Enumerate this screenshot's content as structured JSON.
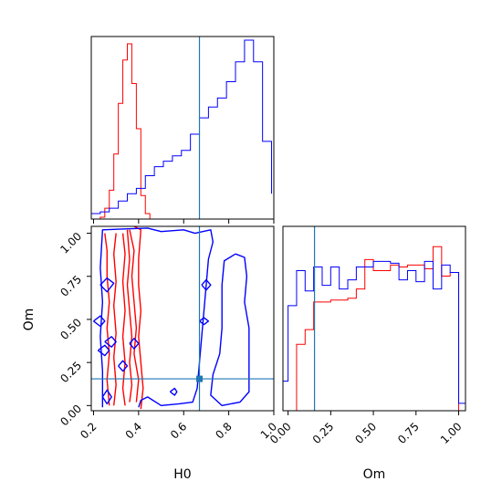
{
  "chart_data": {
    "type": "corner",
    "parameters": [
      "H0",
      "Om"
    ],
    "colors": {
      "red": "#ff0000",
      "blue": "#0000ff",
      "truth": "#1f77b4"
    },
    "truths": {
      "H0": 0.67,
      "Om": 0.155
    },
    "panels": [
      {
        "kind": "histogram",
        "param": "H0",
        "xlim": [
          0.19,
          1.0
        ],
        "series": [
          {
            "color": "red",
            "edges": [
              0.23,
              0.25,
              0.27,
              0.29,
              0.31,
              0.33,
              0.35,
              0.37,
              0.39,
              0.41,
              0.43,
              0.45
            ],
            "counts": [
              0.01,
              0.06,
              0.16,
              0.36,
              0.64,
              0.88,
              0.97,
              0.75,
              0.5,
              0.13,
              0.03
            ]
          },
          {
            "color": "blue",
            "edges": [
              0.19,
              0.23,
              0.27,
              0.31,
              0.35,
              0.39,
              0.43,
              0.47,
              0.51,
              0.55,
              0.59,
              0.63,
              0.67,
              0.71,
              0.75,
              0.79,
              0.83,
              0.87,
              0.91,
              0.95,
              0.99
            ],
            "counts": [
              0.03,
              0.04,
              0.06,
              0.1,
              0.14,
              0.17,
              0.24,
              0.29,
              0.32,
              0.35,
              0.38,
              0.47,
              0.56,
              0.62,
              0.67,
              0.76,
              0.87,
              0.99,
              0.87,
              0.43,
              0.14
            ]
          }
        ]
      },
      {
        "kind": "contour",
        "xparam": "H0",
        "yparam": "Om",
        "xlim": [
          0.19,
          1.0
        ],
        "ylim": [
          -0.03,
          1.04
        ],
        "xticks": [
          "0.2",
          "0.4",
          "0.6",
          "0.8",
          "1.0"
        ],
        "yticks": [
          "0.00",
          "0.25",
          "0.50",
          "0.75",
          "1.00"
        ],
        "series": [
          {
            "color": "red",
            "contours": [
              [
                [
                  0.25,
                  1.0
                ],
                [
                  0.26,
                  0.9
                ],
                [
                  0.26,
                  0.75
                ],
                [
                  0.27,
                  0.6
                ],
                [
                  0.26,
                  0.45
                ],
                [
                  0.27,
                  0.3
                ],
                [
                  0.26,
                  0.15
                ],
                [
                  0.27,
                  0.0
                ]
              ],
              [
                [
                  0.3,
                  1.0
                ],
                [
                  0.29,
                  0.88
                ],
                [
                  0.3,
                  0.72
                ],
                [
                  0.29,
                  0.58
                ],
                [
                  0.3,
                  0.42
                ],
                [
                  0.29,
                  0.28
                ],
                [
                  0.3,
                  0.12
                ],
                [
                  0.29,
                  0.0
                ]
              ],
              [
                [
                  0.33,
                  1.0
                ],
                [
                  0.34,
                  0.88
                ],
                [
                  0.33,
                  0.72
                ],
                [
                  0.34,
                  0.55
                ],
                [
                  0.33,
                  0.4
                ],
                [
                  0.34,
                  0.25
                ],
                [
                  0.33,
                  0.1
                ],
                [
                  0.34,
                  0.0
                ]
              ],
              [
                [
                  0.35,
                  1.02
                ],
                [
                  0.36,
                  0.85
                ],
                [
                  0.35,
                  0.7
                ],
                [
                  0.36,
                  0.55
                ],
                [
                  0.37,
                  0.4
                ],
                [
                  0.36,
                  0.25
                ],
                [
                  0.37,
                  0.12
                ],
                [
                  0.36,
                  0.02
                ]
              ],
              [
                [
                  0.36,
                  1.02
                ],
                [
                  0.38,
                  0.9
                ],
                [
                  0.37,
                  0.75
                ],
                [
                  0.38,
                  0.6
                ],
                [
                  0.39,
                  0.45
                ],
                [
                  0.38,
                  0.3
                ],
                [
                  0.4,
                  0.15
                ],
                [
                  0.39,
                  0.02
                ]
              ],
              [
                [
                  0.38,
                  1.04
                ],
                [
                  0.41,
                  1.02
                ],
                [
                  0.4,
                  0.85
                ],
                [
                  0.4,
                  0.7
                ],
                [
                  0.41,
                  0.55
                ],
                [
                  0.4,
                  0.4
                ],
                [
                  0.41,
                  0.25
                ],
                [
                  0.42,
                  0.1
                ],
                [
                  0.41,
                  -0.02
                ]
              ]
            ]
          },
          {
            "color": "blue",
            "contours": [
              [
                [
                  0.24,
                  -0.01
                ],
                [
                  0.24,
                  0.2
                ],
                [
                  0.23,
                  0.4
                ],
                [
                  0.24,
                  0.6
                ],
                [
                  0.23,
                  0.8
                ],
                [
                  0.24,
                  1.02
                ],
                [
                  0.44,
                  1.03
                ],
                [
                  0.5,
                  1.01
                ],
                [
                  0.6,
                  1.02
                ],
                [
                  0.65,
                  1.0
                ],
                [
                  0.72,
                  1.02
                ],
                [
                  0.73,
                  0.95
                ],
                [
                  0.71,
                  0.85
                ],
                [
                  0.7,
                  0.7
                ],
                [
                  0.69,
                  0.55
                ],
                [
                  0.68,
                  0.4
                ],
                [
                  0.67,
                  0.25
                ],
                [
                  0.66,
                  0.1
                ],
                [
                  0.64,
                  0.02
                ],
                [
                  0.58,
                  0.01
                ],
                [
                  0.5,
                  0.0
                ],
                [
                  0.44,
                  0.05
                ],
                [
                  0.41,
                  0.03
                ],
                [
                  0.4,
                  -0.01
                ]
              ],
              [
                [
                  0.83,
                  0.88
                ],
                [
                  0.78,
                  0.84
                ],
                [
                  0.77,
                  0.7
                ],
                [
                  0.77,
                  0.45
                ],
                [
                  0.76,
                  0.3
                ],
                [
                  0.73,
                  0.18
                ],
                [
                  0.72,
                  0.06
                ],
                [
                  0.77,
                  0.0
                ],
                [
                  0.85,
                  0.02
                ],
                [
                  0.89,
                  0.08
                ],
                [
                  0.89,
                  0.25
                ],
                [
                  0.89,
                  0.45
                ],
                [
                  0.87,
                  0.6
                ],
                [
                  0.88,
                  0.75
                ],
                [
                  0.87,
                  0.86
                ],
                [
                  0.83,
                  0.88
                ]
              ],
              [
                [
                  0.23,
                  0.7
                ],
                [
                  0.26,
                  0.74
                ],
                [
                  0.29,
                  0.71
                ],
                [
                  0.26,
                  0.66
                ],
                [
                  0.23,
                  0.7
                ]
              ],
              [
                [
                  0.2,
                  0.49
                ],
                [
                  0.23,
                  0.52
                ],
                [
                  0.25,
                  0.49
                ],
                [
                  0.23,
                  0.46
                ],
                [
                  0.2,
                  0.49
                ]
              ],
              [
                [
                  0.25,
                  0.37
                ],
                [
                  0.28,
                  0.4
                ],
                [
                  0.3,
                  0.37
                ],
                [
                  0.28,
                  0.34
                ],
                [
                  0.25,
                  0.37
                ]
              ],
              [
                [
                  0.22,
                  0.32
                ],
                [
                  0.25,
                  0.35
                ],
                [
                  0.27,
                  0.32
                ],
                [
                  0.25,
                  0.29
                ],
                [
                  0.22,
                  0.32
                ]
              ],
              [
                [
                  0.36,
                  0.36
                ],
                [
                  0.38,
                  0.39
                ],
                [
                  0.4,
                  0.36
                ],
                [
                  0.38,
                  0.33
                ],
                [
                  0.36,
                  0.36
                ]
              ],
              [
                [
                  0.24,
                  0.05
                ],
                [
                  0.26,
                  0.09
                ],
                [
                  0.28,
                  0.05
                ],
                [
                  0.26,
                  0.01
                ],
                [
                  0.24,
                  0.05
                ]
              ],
              [
                [
                  0.31,
                  0.23
                ],
                [
                  0.33,
                  0.26
                ],
                [
                  0.35,
                  0.23
                ],
                [
                  0.33,
                  0.2
                ],
                [
                  0.31,
                  0.23
                ]
              ],
              [
                [
                  0.68,
                  0.7
                ],
                [
                  0.7,
                  0.73
                ],
                [
                  0.72,
                  0.7
                ],
                [
                  0.7,
                  0.67
                ],
                [
                  0.68,
                  0.7
                ]
              ],
              [
                [
                  0.67,
                  0.49
                ],
                [
                  0.69,
                  0.51
                ],
                [
                  0.71,
                  0.49
                ],
                [
                  0.69,
                  0.47
                ],
                [
                  0.67,
                  0.49
                ]
              ],
              [
                [
                  0.54,
                  0.08
                ],
                [
                  0.56,
                  0.1
                ],
                [
                  0.57,
                  0.08
                ],
                [
                  0.56,
                  0.06
                ],
                [
                  0.54,
                  0.08
                ]
              ]
            ]
          }
        ]
      },
      {
        "kind": "histogram",
        "param": "Om",
        "xlim": [
          -0.03,
          1.04
        ],
        "xticks": [
          "0.00",
          "0.25",
          "0.50",
          "0.75",
          "1.00"
        ],
        "series": [
          {
            "color": "red",
            "edges": [
              0.0,
              0.05,
              0.1,
              0.15,
              0.2,
              0.25,
              0.3,
              0.35,
              0.4,
              0.45,
              0.5,
              0.55,
              0.6,
              0.65,
              0.7,
              0.75,
              0.8,
              0.85,
              0.9,
              0.95,
              1.0
            ],
            "counts": [
              0.0,
              0.36,
              0.44,
              0.59,
              0.59,
              0.6,
              0.6,
              0.61,
              0.66,
              0.82,
              0.76,
              0.76,
              0.79,
              0.78,
              0.79,
              0.79,
              0.77,
              0.89,
              0.73,
              0.75
            ],
            "tail": 0.0
          },
          {
            "color": "blue",
            "edges": [
              -0.03,
              0.0,
              0.05,
              0.1,
              0.15,
              0.2,
              0.25,
              0.3,
              0.35,
              0.4,
              0.45,
              0.5,
              0.55,
              0.6,
              0.65,
              0.7,
              0.75,
              0.8,
              0.85,
              0.9,
              0.95,
              1.0,
              1.04
            ],
            "counts": [
              0.16,
              0.57,
              0.76,
              0.65,
              0.78,
              0.68,
              0.78,
              0.66,
              0.71,
              0.78,
              0.78,
              0.81,
              0.81,
              0.8,
              0.71,
              0.76,
              0.7,
              0.81,
              0.66,
              0.79,
              0.75,
              0.04
            ]
          }
        ]
      }
    ],
    "xlabels": {
      "H0": "H0",
      "Om": "Om"
    },
    "ylabels": {
      "Om": "Om"
    }
  }
}
